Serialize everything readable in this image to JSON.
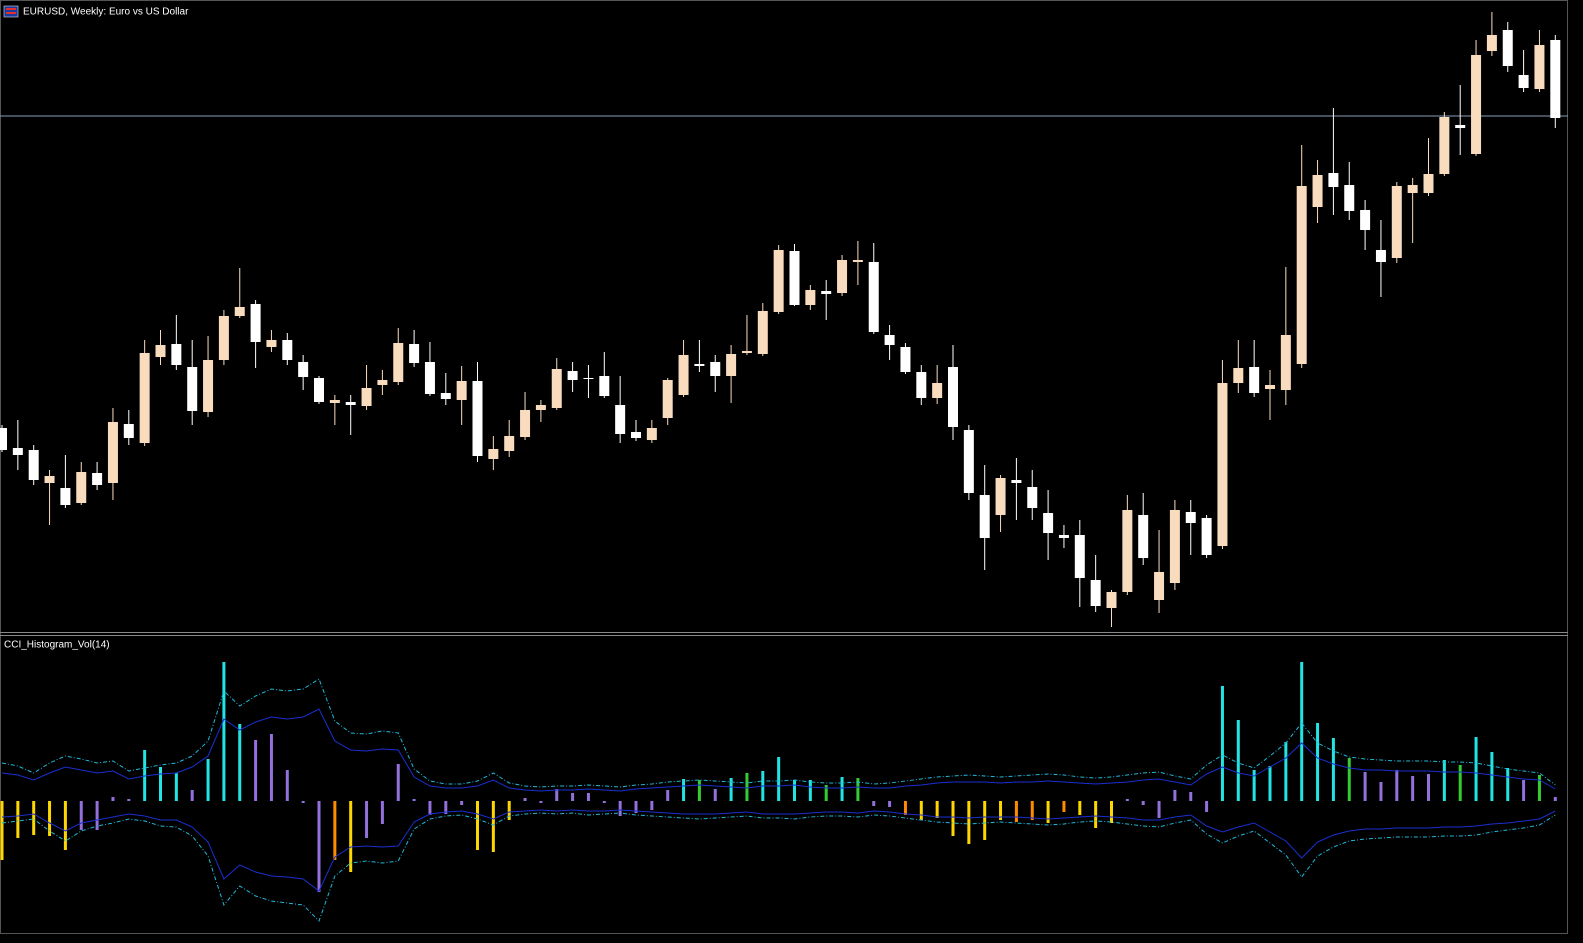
{
  "chart_data": [
    {
      "type": "candlestick",
      "title": "EURUSD, Weekly:  Euro vs US Dollar",
      "ylim": [
        0,
        630
      ],
      "hline": 514,
      "hline_color": "#8a9bb8",
      "bull_color": "#f9dcbe",
      "bear_color": "#ffffff",
      "open": [
        202,
        182,
        180,
        147,
        142,
        127,
        157,
        147,
        206,
        187,
        273,
        286,
        263,
        218,
        270,
        314,
        326,
        283,
        290,
        268,
        252,
        227,
        228,
        224,
        245,
        248,
        286,
        268,
        237,
        230,
        249,
        171,
        179,
        193,
        220,
        222,
        259,
        252,
        254,
        225,
        198,
        190,
        212,
        235,
        266,
        268,
        254,
        277,
        276,
        318,
        379,
        325,
        339,
        337,
        368,
        368,
        295,
        283,
        258,
        232,
        263,
        200,
        135,
        115,
        150,
        143,
        117,
        95,
        95,
        50,
        22,
        38,
        115,
        30,
        47,
        118,
        112,
        84,
        247,
        263,
        241,
        240,
        266,
        423,
        457,
        445,
        420,
        380,
        372,
        437,
        437,
        456,
        505,
        476,
        579,
        600,
        555,
        541,
        590
      ],
      "high": [
        205,
        210,
        185,
        160,
        175,
        168,
        168,
        222,
        220,
        290,
        300,
        315,
        290,
        294,
        320,
        362,
        330,
        300,
        297,
        275,
        254,
        235,
        235,
        265,
        260,
        302,
        300,
        288,
        257,
        264,
        268,
        194,
        210,
        238,
        230,
        272,
        268,
        265,
        278,
        254,
        210,
        210,
        252,
        290,
        290,
        275,
        285,
        315,
        327,
        385,
        386,
        345,
        350,
        375,
        389,
        387,
        305,
        287,
        265,
        265,
        285,
        205,
        165,
        155,
        172,
        160,
        140,
        105,
        110,
        75,
        40,
        135,
        137,
        100,
        130,
        130,
        115,
        270,
        290,
        290,
        260,
        363,
        485,
        470,
        522,
        468,
        430,
        410,
        448,
        452,
        492,
        518,
        545,
        590,
        618,
        608,
        580,
        600,
        595
      ],
      "low": [
        178,
        160,
        145,
        105,
        122,
        125,
        140,
        130,
        185,
        184,
        265,
        260,
        205,
        213,
        265,
        312,
        262,
        278,
        265,
        240,
        226,
        205,
        195,
        220,
        235,
        245,
        263,
        234,
        225,
        205,
        168,
        160,
        173,
        190,
        208,
        220,
        238,
        232,
        232,
        187,
        189,
        187,
        205,
        233,
        258,
        238,
        227,
        275,
        274,
        316,
        324,
        320,
        310,
        334,
        345,
        296,
        270,
        256,
        225,
        226,
        190,
        130,
        60,
        98,
        110,
        110,
        70,
        82,
        23,
        18,
        3,
        35,
        65,
        17,
        40,
        75,
        72,
        81,
        237,
        233,
        210,
        225,
        262,
        407,
        415,
        410,
        380,
        333,
        367,
        387,
        434,
        454,
        475,
        474,
        574,
        558,
        538,
        538,
        502
      ],
      "close": [
        180,
        175,
        150,
        154,
        125,
        158,
        145,
        208,
        192,
        277,
        285,
        265,
        219,
        270,
        314,
        323,
        288,
        290,
        270,
        253,
        228,
        230,
        225,
        242,
        250,
        287,
        267,
        236,
        231,
        249,
        174,
        181,
        194,
        220,
        225,
        261,
        250,
        251,
        234,
        196,
        192,
        202,
        250,
        275,
        264,
        254,
        276,
        279,
        319,
        380,
        325,
        340,
        336,
        370,
        370,
        298,
        285,
        258,
        232,
        247,
        203,
        137,
        92,
        152,
        147,
        122,
        97,
        92,
        52,
        24,
        38,
        120,
        72,
        58,
        120,
        107,
        75,
        247,
        262,
        237,
        245,
        295,
        444,
        455,
        443,
        419,
        400,
        368,
        444,
        445,
        456,
        513,
        502,
        575,
        595,
        564,
        542,
        585,
        512
      ]
    },
    {
      "type": "bar",
      "title": "CCI_Histogram_Vol(14)",
      "ylim": [
        -130,
        140
      ],
      "values": [
        -59,
        -37,
        -34,
        -35,
        -49,
        -29,
        -29,
        4,
        2,
        51,
        34,
        28,
        11,
        42,
        139,
        77,
        61,
        67,
        31,
        -2,
        -91,
        -59,
        -71,
        -37,
        -23,
        37,
        2,
        -14,
        -13,
        -4,
        -49,
        -51,
        -19,
        3,
        -2,
        12,
        8,
        8,
        -2,
        -15,
        -12,
        -9,
        11,
        22,
        21,
        12,
        23,
        28,
        30,
        44,
        21,
        21,
        16,
        24,
        23,
        -5,
        -6,
        -14,
        -19,
        -17,
        -35,
        -43,
        -39,
        -19,
        -21,
        -19,
        -22,
        -11,
        -14,
        -27,
        -22,
        2,
        -4,
        -17,
        11,
        9,
        -11,
        115,
        81,
        31,
        35,
        59,
        139,
        78,
        63,
        43,
        29,
        19,
        31,
        25,
        27,
        41,
        36,
        64,
        49,
        33,
        21,
        26,
        4
      ],
      "colors": [
        "#ffd700",
        "#ffd700",
        "#ffd700",
        "#ffd700",
        "#ffd700",
        "#9370db",
        "#9370db",
        "#9370db",
        "#9370db",
        "#22e4e4",
        "#22e4e4",
        "#22e4e4",
        "#9370db",
        "#22e4e4",
        "#22e4e4",
        "#22e4e4",
        "#9370db",
        "#9370db",
        "#9370db",
        "#9370db",
        "#9370db",
        "#ff8c00",
        "#ffd700",
        "#9370db",
        "#9370db",
        "#9370db",
        "#9370db",
        "#9370db",
        "#9370db",
        "#9370db",
        "#ffd700",
        "#ffd700",
        "#ffd700",
        "#9370db",
        "#9370db",
        "#9370db",
        "#9370db",
        "#9370db",
        "#9370db",
        "#9370db",
        "#9370db",
        "#9370db",
        "#9370db",
        "#22e4e4",
        "#32cd32",
        "#9370db",
        "#22e4e4",
        "#32cd32",
        "#22e4e4",
        "#22e4e4",
        "#22e4e4",
        "#22e4e4",
        "#32cd32",
        "#22e4e4",
        "#32cd32",
        "#9370db",
        "#9370db",
        "#ff8c00",
        "#ffd700",
        "#ffd700",
        "#ffd700",
        "#ffd700",
        "#ffd700",
        "#ffd700",
        "#ff8c00",
        "#ff8c00",
        "#ffd700",
        "#ff8c00",
        "#ffd700",
        "#ffd700",
        "#ffd700",
        "#9370db",
        "#9370db",
        "#9370db",
        "#9370db",
        "#9370db",
        "#9370db",
        "#22e4e4",
        "#22e4e4",
        "#22e4e4",
        "#22e4e4",
        "#22e4e4",
        "#22e4e4",
        "#22e4e4",
        "#22e4e4",
        "#32cd32",
        "#9370db",
        "#9370db",
        "#9370db",
        "#9370db",
        "#9370db",
        "#22e4e4",
        "#32cd32",
        "#22e4e4",
        "#22e4e4",
        "#22e4e4",
        "#9370db",
        "#32cd32",
        "#9370db"
      ],
      "bands": [
        {
          "color": "#1fb8d8",
          "dashed": true,
          "values": [
            38,
            35,
            28,
            38,
            45,
            42,
            38,
            40,
            30,
            33,
            36,
            38,
            45,
            60,
            110,
            95,
            105,
            112,
            110,
            112,
            122,
            80,
            68,
            67,
            70,
            68,
            32,
            20,
            17,
            17,
            20,
            28,
            18,
            15,
            14,
            15,
            15,
            16,
            15,
            14,
            16,
            17,
            19,
            20,
            21,
            20,
            19,
            18,
            20,
            20,
            21,
            19,
            18,
            18,
            19,
            17,
            18,
            20,
            22,
            24,
            25,
            26,
            25,
            24,
            25,
            26,
            27,
            26,
            24,
            23,
            24,
            26,
            28,
            29,
            25,
            22,
            36,
            46,
            38,
            33,
            45,
            58,
            78,
            58,
            50,
            44,
            42,
            41,
            40,
            40,
            40,
            39,
            39,
            38,
            35,
            32,
            30,
            28,
            16
          ]
        },
        {
          "color": "#1a2fd0",
          "dashed": false,
          "values": [
            28,
            26,
            21,
            28,
            34,
            31,
            28,
            30,
            22,
            25,
            27,
            28,
            34,
            45,
            82,
            71,
            79,
            84,
            82,
            84,
            92,
            60,
            51,
            50,
            52,
            51,
            24,
            15,
            13,
            13,
            15,
            21,
            13,
            11,
            10,
            11,
            11,
            12,
            11,
            10,
            12,
            13,
            14,
            15,
            16,
            15,
            14,
            13,
            15,
            15,
            16,
            14,
            13,
            13,
            14,
            13,
            13,
            15,
            16,
            18,
            19,
            19,
            19,
            18,
            19,
            19,
            20,
            19,
            18,
            17,
            18,
            19,
            21,
            22,
            19,
            16,
            27,
            34,
            28,
            25,
            34,
            43,
            58,
            43,
            37,
            33,
            31,
            31,
            30,
            30,
            30,
            29,
            29,
            28,
            26,
            24,
            22,
            21,
            12
          ]
        },
        {
          "color": "#1a2fd0",
          "dashed": false,
          "values": [
            -16,
            -15,
            -13,
            -22,
            -30,
            -22,
            -19,
            -16,
            -13,
            -15,
            -19,
            -19,
            -26,
            -41,
            -78,
            -64,
            -71,
            -75,
            -76,
            -78,
            -90,
            -56,
            -46,
            -45,
            -46,
            -45,
            -21,
            -13,
            -11,
            -10,
            -13,
            -18,
            -11,
            -10,
            -9,
            -10,
            -9,
            -10,
            -10,
            -9,
            -10,
            -11,
            -12,
            -13,
            -13,
            -13,
            -12,
            -11,
            -13,
            -13,
            -13,
            -12,
            -11,
            -11,
            -12,
            -10,
            -11,
            -13,
            -14,
            -16,
            -16,
            -17,
            -16,
            -16,
            -16,
            -17,
            -18,
            -17,
            -16,
            -15,
            -16,
            -17,
            -19,
            -19,
            -16,
            -14,
            -25,
            -31,
            -26,
            -22,
            -31,
            -40,
            -57,
            -41,
            -34,
            -30,
            -28,
            -28,
            -27,
            -27,
            -27,
            -26,
            -26,
            -25,
            -23,
            -22,
            -20,
            -18,
            -10
          ]
        },
        {
          "color": "#1fb8d8",
          "dashed": true,
          "values": [
            -22,
            -20,
            -18,
            -30,
            -40,
            -30,
            -25,
            -22,
            -18,
            -20,
            -25,
            -26,
            -35,
            -55,
            -104,
            -85,
            -95,
            -100,
            -102,
            -104,
            -120,
            -75,
            -62,
            -60,
            -62,
            -60,
            -28,
            -18,
            -15,
            -14,
            -18,
            -24,
            -15,
            -13,
            -12,
            -13,
            -12,
            -14,
            -13,
            -12,
            -14,
            -15,
            -16,
            -17,
            -18,
            -17,
            -16,
            -15,
            -17,
            -17,
            -18,
            -16,
            -15,
            -15,
            -16,
            -14,
            -15,
            -17,
            -19,
            -21,
            -22,
            -23,
            -22,
            -21,
            -22,
            -23,
            -24,
            -23,
            -21,
            -20,
            -21,
            -23,
            -25,
            -26,
            -22,
            -19,
            -33,
            -42,
            -35,
            -30,
            -42,
            -54,
            -76,
            -55,
            -46,
            -40,
            -38,
            -37,
            -36,
            -36,
            -36,
            -35,
            -35,
            -34,
            -31,
            -29,
            -27,
            -24,
            -14
          ]
        }
      ]
    }
  ]
}
